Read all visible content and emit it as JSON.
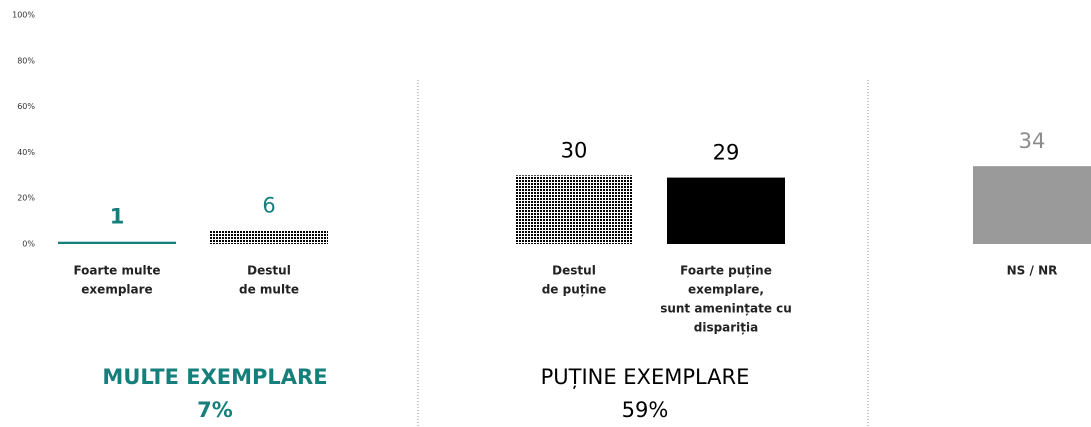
{
  "chart_data": {
    "type": "bar",
    "categories": [
      [
        "Foarte multe",
        "exemplare"
      ],
      [
        "Destul",
        "de multe"
      ],
      [
        "Destul",
        "de puține"
      ],
      [
        "Foarte puține",
        "exemplare,",
        "sunt amenințate cu",
        "dispariția"
      ],
      [
        "NS / NR"
      ]
    ],
    "values": [
      1,
      6,
      30,
      29,
      34
    ],
    "colors": [
      "#157f7b",
      "#2fa39e",
      "#1e1e1e",
      "#000000",
      "#9a9a9a"
    ],
    "label_colors": [
      "#157f7b",
      "#157f7b",
      "#000000",
      "#000000",
      "#8c8c8c"
    ],
    "ylim": [
      0,
      100
    ],
    "yticks": [
      {
        "value": 0,
        "label": "0%"
      },
      {
        "value": 20,
        "label": "20%"
      },
      {
        "value": 40,
        "label": "40%"
      },
      {
        "value": 60,
        "label": "60%"
      },
      {
        "value": 80,
        "label": "80%"
      },
      {
        "value": 100,
        "label": "100%"
      }
    ],
    "groups": [
      {
        "name": "MULTE EXEMPLARE",
        "label": "7%"
      },
      {
        "name": "PUȚINE EXEMPLARE",
        "label": "59%"
      }
    ]
  }
}
